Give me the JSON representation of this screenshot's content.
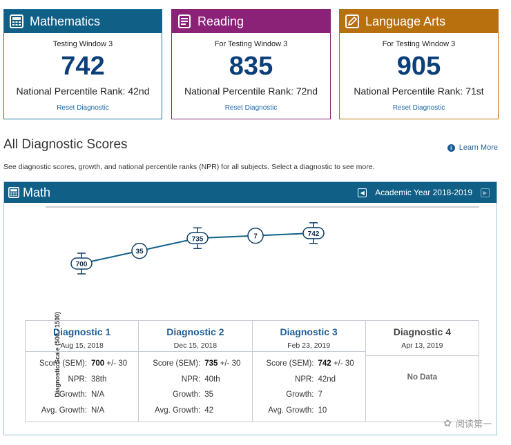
{
  "cards": [
    {
      "subject": "Mathematics",
      "icon": "calculator-icon",
      "window": "Testing Window 3",
      "score": "742",
      "npr": "National Percentile Rank: 42nd",
      "reset": "Reset Diagnostic",
      "color": "#0f5f87"
    },
    {
      "subject": "Reading",
      "icon": "book-icon",
      "window": "For Testing Window 3",
      "score": "835",
      "npr": "National Percentile Rank: 72nd",
      "reset": "Reset Diagnostic",
      "color": "#8b2278"
    },
    {
      "subject": "Language Arts",
      "icon": "pencil-icon",
      "window": "For Testing Window 3",
      "score": "905",
      "npr": "National Percentile Rank: 71st",
      "reset": "Reset Diagnostic",
      "color": "#b8700f"
    }
  ],
  "section": {
    "title": "All Diagnostic Scores",
    "learn_more": "Learn More",
    "description": "See diagnostic scores, growth, and national percentile ranks (NPR) for all subjects. Select a diagnostic to see more."
  },
  "panel": {
    "title": "Math",
    "year": "Academic Year 2018-2019"
  },
  "chart_data": {
    "type": "line",
    "ylabel": "Diagnostic Scale (500 - 1500)",
    "points": [
      {
        "label": "700",
        "value": 700,
        "error_bar": true
      },
      {
        "label": "35",
        "value": null,
        "growth": true,
        "error_bar": false
      },
      {
        "label": "735",
        "value": 735,
        "error_bar": true
      },
      {
        "label": "7",
        "value": null,
        "growth": true,
        "error_bar": false
      },
      {
        "label": "742",
        "value": 742,
        "error_bar": true
      }
    ],
    "sem": 30,
    "line_color": "#0f5f87"
  },
  "diagnostics": [
    {
      "name": "Diagnostic 1",
      "date": "Aug 15, 2018",
      "score_label": "Score (SEM):",
      "score": "700",
      "sem": "+/- 30",
      "npr_label": "NPR:",
      "npr": "38th",
      "growth_label": "Growth:",
      "growth": "N/A",
      "avg_label": "Avg. Growth:",
      "avg": "N/A"
    },
    {
      "name": "Diagnostic 2",
      "date": "Dec 15, 2018",
      "score_label": "Score (SEM):",
      "score": "735",
      "sem": "+/- 30",
      "npr_label": "NPR:",
      "npr": "40th",
      "growth_label": "Growth:",
      "growth": "35",
      "avg_label": "Avg. Growth:",
      "avg": "42"
    },
    {
      "name": "Diagnostic 3",
      "date": "Feb 23, 2019",
      "score_label": "Score (SEM):",
      "score": "742",
      "sem": "+/- 30",
      "npr_label": "NPR:",
      "npr": "42nd",
      "growth_label": "Growth:",
      "growth": "7",
      "avg_label": "Avg. Growth:",
      "avg": "10"
    },
    {
      "name": "Diagnostic 4",
      "date": "Apr 13, 2019",
      "no_data": "No Data"
    }
  ],
  "watermark": "阅读第一"
}
